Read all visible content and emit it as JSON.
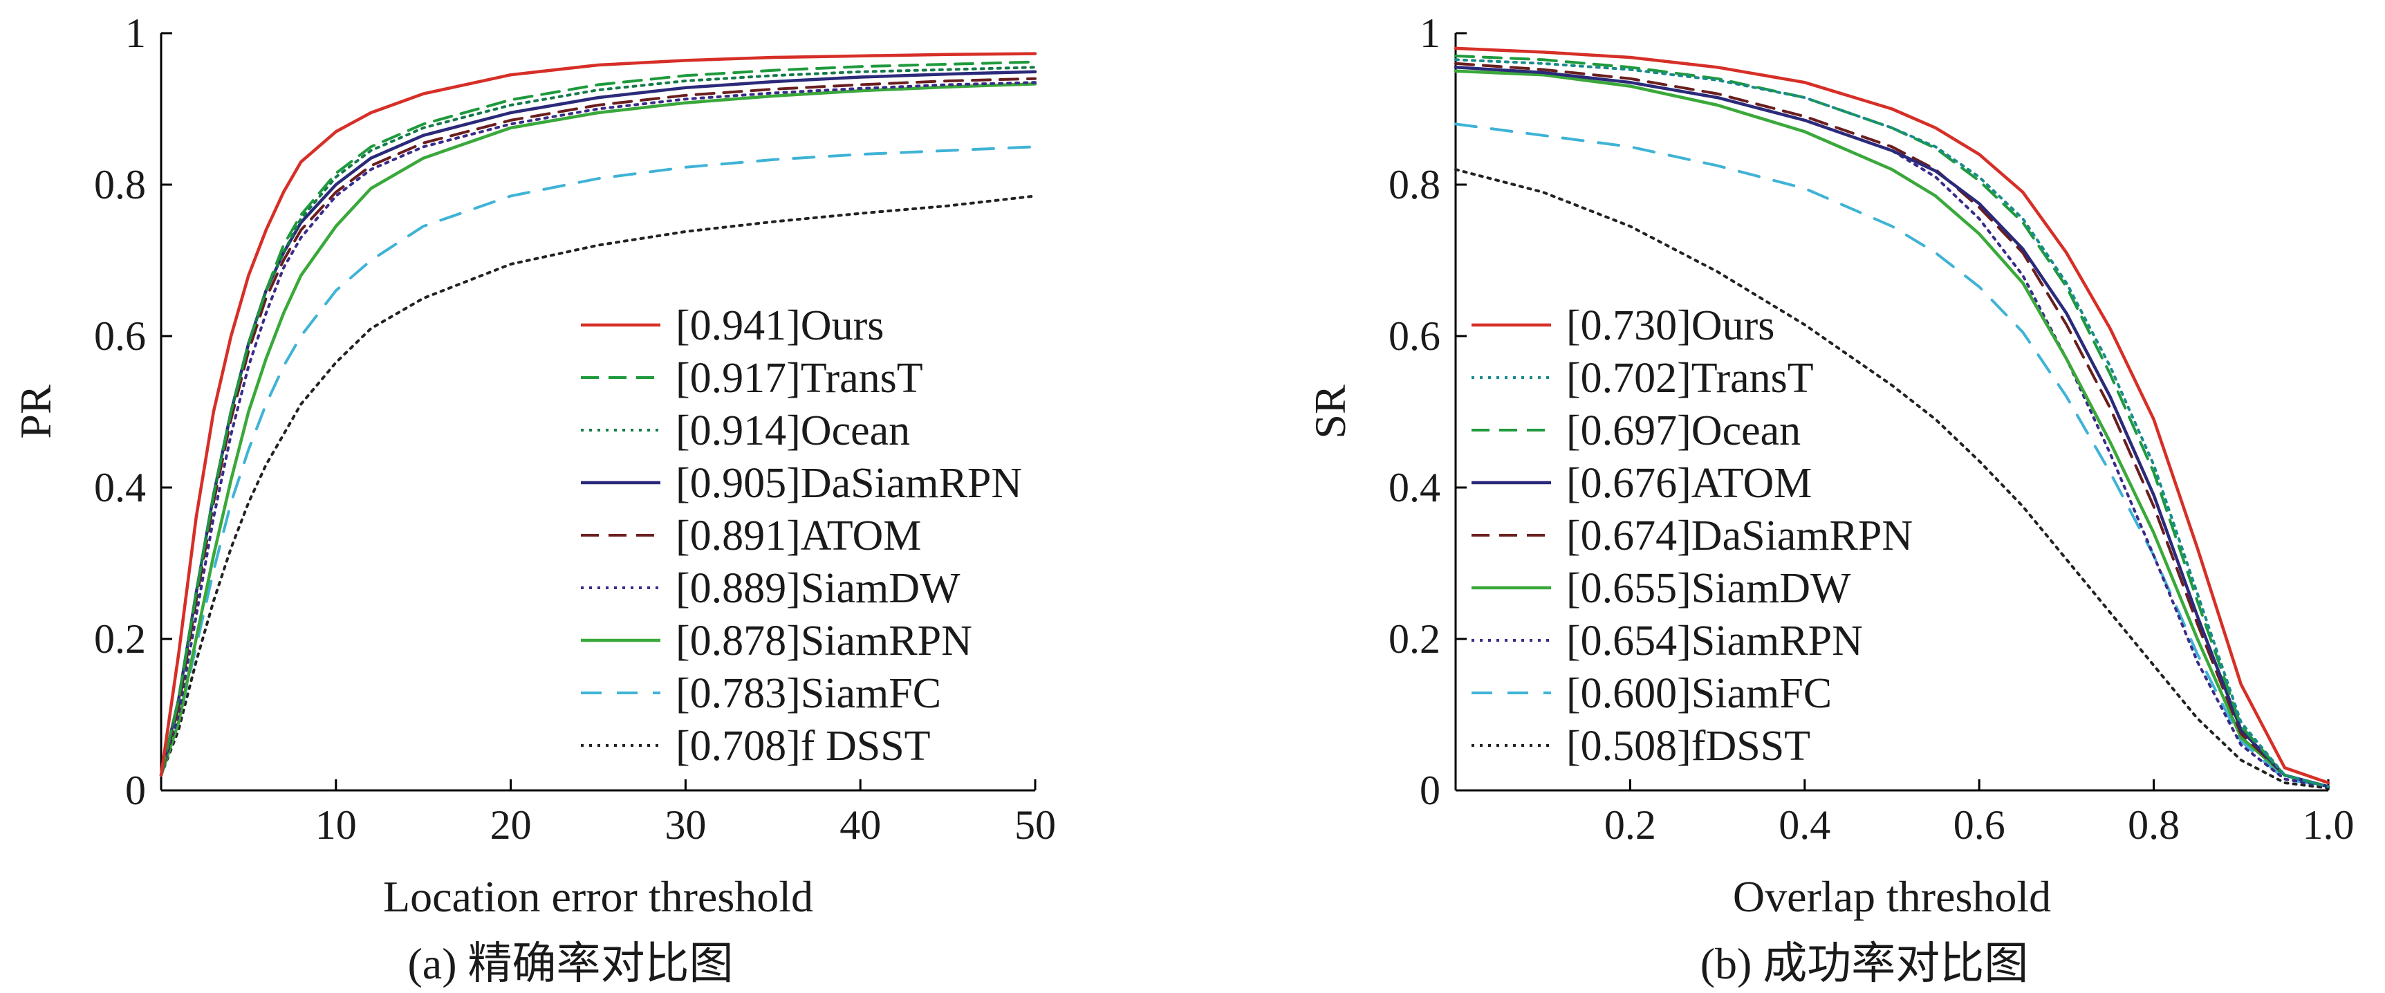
{
  "chart_data": [
    {
      "type": "line",
      "title": "",
      "caption": "(a) 精确率对比图",
      "xlabel": "Location error threshold",
      "ylabel": "PR",
      "xlim": [
        0,
        50
      ],
      "ylim": [
        0,
        1
      ],
      "xticks": [
        10,
        20,
        30,
        40,
        50
      ],
      "xtick_labels": [
        "10",
        "20",
        "30",
        "40",
        "50"
      ],
      "yticks": [
        0,
        0.2,
        0.4,
        0.6,
        0.8,
        1
      ],
      "ytick_labels": [
        "0",
        "0.2",
        "0.4",
        "0.6",
        "0.8",
        "1"
      ],
      "grid": false,
      "legend_position": "center-right",
      "x": [
        0,
        1,
        2,
        3,
        4,
        5,
        6,
        7,
        8,
        10,
        12,
        15,
        20,
        25,
        30,
        35,
        40,
        45,
        50
      ],
      "series": [
        {
          "name": "Ours",
          "legend_label": "[0.941]Ours",
          "color": "#d62f27",
          "dash": "solid",
          "values": [
            0.02,
            0.18,
            0.36,
            0.5,
            0.6,
            0.68,
            0.74,
            0.79,
            0.83,
            0.87,
            0.895,
            0.92,
            0.945,
            0.958,
            0.964,
            0.968,
            0.97,
            0.972,
            0.973
          ]
        },
        {
          "name": "TransT",
          "legend_label": "[0.917]TransT",
          "color": "#1e9a3c",
          "dash": "dashed",
          "values": [
            0.02,
            0.12,
            0.26,
            0.39,
            0.5,
            0.59,
            0.66,
            0.72,
            0.76,
            0.815,
            0.85,
            0.88,
            0.912,
            0.932,
            0.944,
            0.951,
            0.956,
            0.959,
            0.962
          ]
        },
        {
          "name": "Ocean",
          "legend_label": "[0.914]Ocean",
          "color": "#147a4a",
          "dash": "dotted",
          "values": [
            0.02,
            0.12,
            0.26,
            0.39,
            0.5,
            0.59,
            0.66,
            0.71,
            0.755,
            0.81,
            0.845,
            0.875,
            0.905,
            0.925,
            0.937,
            0.944,
            0.949,
            0.952,
            0.955
          ]
        },
        {
          "name": "DaSiamRPN",
          "legend_label": "[0.905]DaSiamRPN",
          "color": "#2b2a7a",
          "dash": "solid",
          "values": [
            0.02,
            0.12,
            0.26,
            0.39,
            0.5,
            0.59,
            0.66,
            0.71,
            0.75,
            0.8,
            0.835,
            0.865,
            0.895,
            0.915,
            0.928,
            0.936,
            0.942,
            0.946,
            0.949
          ]
        },
        {
          "name": "ATOM",
          "legend_label": "[0.891]ATOM",
          "color": "#6b1e1e",
          "dash": "dashed",
          "values": [
            0.02,
            0.11,
            0.25,
            0.38,
            0.49,
            0.58,
            0.65,
            0.7,
            0.74,
            0.79,
            0.825,
            0.855,
            0.885,
            0.905,
            0.918,
            0.926,
            0.932,
            0.937,
            0.94
          ]
        },
        {
          "name": "SiamDW",
          "legend_label": "[0.889]SiamDW",
          "color": "#3a2b8a",
          "dash": "dotted",
          "values": [
            0.02,
            0.1,
            0.23,
            0.36,
            0.47,
            0.56,
            0.63,
            0.69,
            0.73,
            0.785,
            0.82,
            0.85,
            0.88,
            0.9,
            0.913,
            0.921,
            0.927,
            0.932,
            0.935
          ]
        },
        {
          "name": "SiamRPN",
          "legend_label": "[0.878]SiamRPN",
          "color": "#3aa83a",
          "dash": "solid",
          "values": [
            0.02,
            0.09,
            0.2,
            0.31,
            0.41,
            0.5,
            0.57,
            0.63,
            0.68,
            0.745,
            0.795,
            0.835,
            0.875,
            0.895,
            0.908,
            0.917,
            0.924,
            0.929,
            0.933
          ]
        },
        {
          "name": "SiamFC",
          "legend_label": "[0.783]SiamFC",
          "color": "#3fb3d6",
          "dash": "longdash",
          "values": [
            0.02,
            0.09,
            0.19,
            0.29,
            0.38,
            0.45,
            0.51,
            0.56,
            0.6,
            0.66,
            0.7,
            0.745,
            0.785,
            0.808,
            0.823,
            0.833,
            0.84,
            0.845,
            0.85
          ]
        },
        {
          "name": "fDSST",
          "legend_label": "[0.708]f DSST",
          "color": "#222222",
          "dash": "dotted",
          "values": [
            0.02,
            0.08,
            0.17,
            0.25,
            0.32,
            0.38,
            0.43,
            0.47,
            0.51,
            0.565,
            0.61,
            0.65,
            0.695,
            0.72,
            0.738,
            0.751,
            0.762,
            0.772,
            0.785
          ]
        }
      ]
    },
    {
      "type": "line",
      "title": "",
      "caption": "(b) 成功率对比图",
      "xlabel": "Overlap threshold",
      "ylabel": "SR",
      "xlim": [
        0,
        1.0
      ],
      "ylim": [
        0,
        1
      ],
      "xticks": [
        0.2,
        0.4,
        0.6,
        0.8,
        1.0
      ],
      "xtick_labels": [
        "0.2",
        "0.4",
        "0.6",
        "0.8",
        "1.0"
      ],
      "yticks": [
        0,
        0.2,
        0.4,
        0.6,
        0.8,
        1
      ],
      "ytick_labels": [
        "0",
        "0.2",
        "0.4",
        "0.6",
        "0.8",
        "1"
      ],
      "grid": false,
      "legend_position": "left",
      "x": [
        0,
        0.1,
        0.2,
        0.3,
        0.4,
        0.5,
        0.55,
        0.6,
        0.65,
        0.7,
        0.75,
        0.8,
        0.85,
        0.9,
        0.95,
        1.0
      ],
      "series": [
        {
          "name": "Ours",
          "legend_label": "[0.730]Ours",
          "color": "#d62f27",
          "dash": "solid",
          "values": [
            0.98,
            0.975,
            0.968,
            0.955,
            0.935,
            0.9,
            0.875,
            0.84,
            0.79,
            0.71,
            0.61,
            0.49,
            0.32,
            0.14,
            0.03,
            0.01
          ]
        },
        {
          "name": "TransT",
          "legend_label": "[0.702]TransT",
          "color": "#1a8a8a",
          "dash": "dotted",
          "values": [
            0.965,
            0.96,
            0.952,
            0.938,
            0.915,
            0.875,
            0.85,
            0.81,
            0.755,
            0.67,
            0.56,
            0.43,
            0.26,
            0.09,
            0.02,
            0.005
          ]
        },
        {
          "name": "Ocean",
          "legend_label": "[0.697]Ocean",
          "color": "#1e9a3c",
          "dash": "dashed",
          "values": [
            0.97,
            0.965,
            0.955,
            0.94,
            0.915,
            0.875,
            0.848,
            0.805,
            0.75,
            0.665,
            0.55,
            0.42,
            0.25,
            0.085,
            0.02,
            0.005
          ]
        },
        {
          "name": "ATOM",
          "legend_label": "[0.676]ATOM",
          "color": "#2b2a7a",
          "dash": "solid",
          "values": [
            0.955,
            0.948,
            0.935,
            0.915,
            0.885,
            0.845,
            0.818,
            0.775,
            0.715,
            0.63,
            0.52,
            0.39,
            0.23,
            0.08,
            0.02,
            0.005
          ]
        },
        {
          "name": "DaSiamRPN",
          "legend_label": "[0.674]DaSiamRPN",
          "color": "#6b1e1e",
          "dash": "dashed",
          "values": [
            0.96,
            0.952,
            0.94,
            0.92,
            0.89,
            0.85,
            0.82,
            0.77,
            0.71,
            0.615,
            0.505,
            0.375,
            0.22,
            0.075,
            0.02,
            0.005
          ]
        },
        {
          "name": "SiamDW",
          "legend_label": "[0.655]SiamDW",
          "color": "#3aa83a",
          "dash": "solid",
          "values": [
            0.95,
            0.945,
            0.93,
            0.905,
            0.87,
            0.82,
            0.785,
            0.735,
            0.67,
            0.57,
            0.46,
            0.34,
            0.2,
            0.07,
            0.02,
            0.005
          ]
        },
        {
          "name": "SiamRPN",
          "legend_label": "[0.654]SiamRPN",
          "color": "#3a2b8a",
          "dash": "dotted",
          "values": [
            0.955,
            0.948,
            0.935,
            0.915,
            0.885,
            0.845,
            0.81,
            0.755,
            0.68,
            0.57,
            0.445,
            0.31,
            0.17,
            0.06,
            0.015,
            0.005
          ]
        },
        {
          "name": "SiamFC",
          "legend_label": "[0.600]SiamFC",
          "color": "#3fb3d6",
          "dash": "longdash",
          "values": [
            0.88,
            0.865,
            0.85,
            0.825,
            0.795,
            0.745,
            0.71,
            0.665,
            0.605,
            0.52,
            0.42,
            0.31,
            0.18,
            0.065,
            0.015,
            0.005
          ]
        },
        {
          "name": "fDSST",
          "legend_label": "[0.508]fDSST",
          "color": "#222222",
          "dash": "dotted",
          "values": [
            0.82,
            0.79,
            0.745,
            0.685,
            0.615,
            0.535,
            0.49,
            0.435,
            0.375,
            0.305,
            0.235,
            0.165,
            0.095,
            0.04,
            0.01,
            0.003
          ]
        }
      ]
    }
  ]
}
